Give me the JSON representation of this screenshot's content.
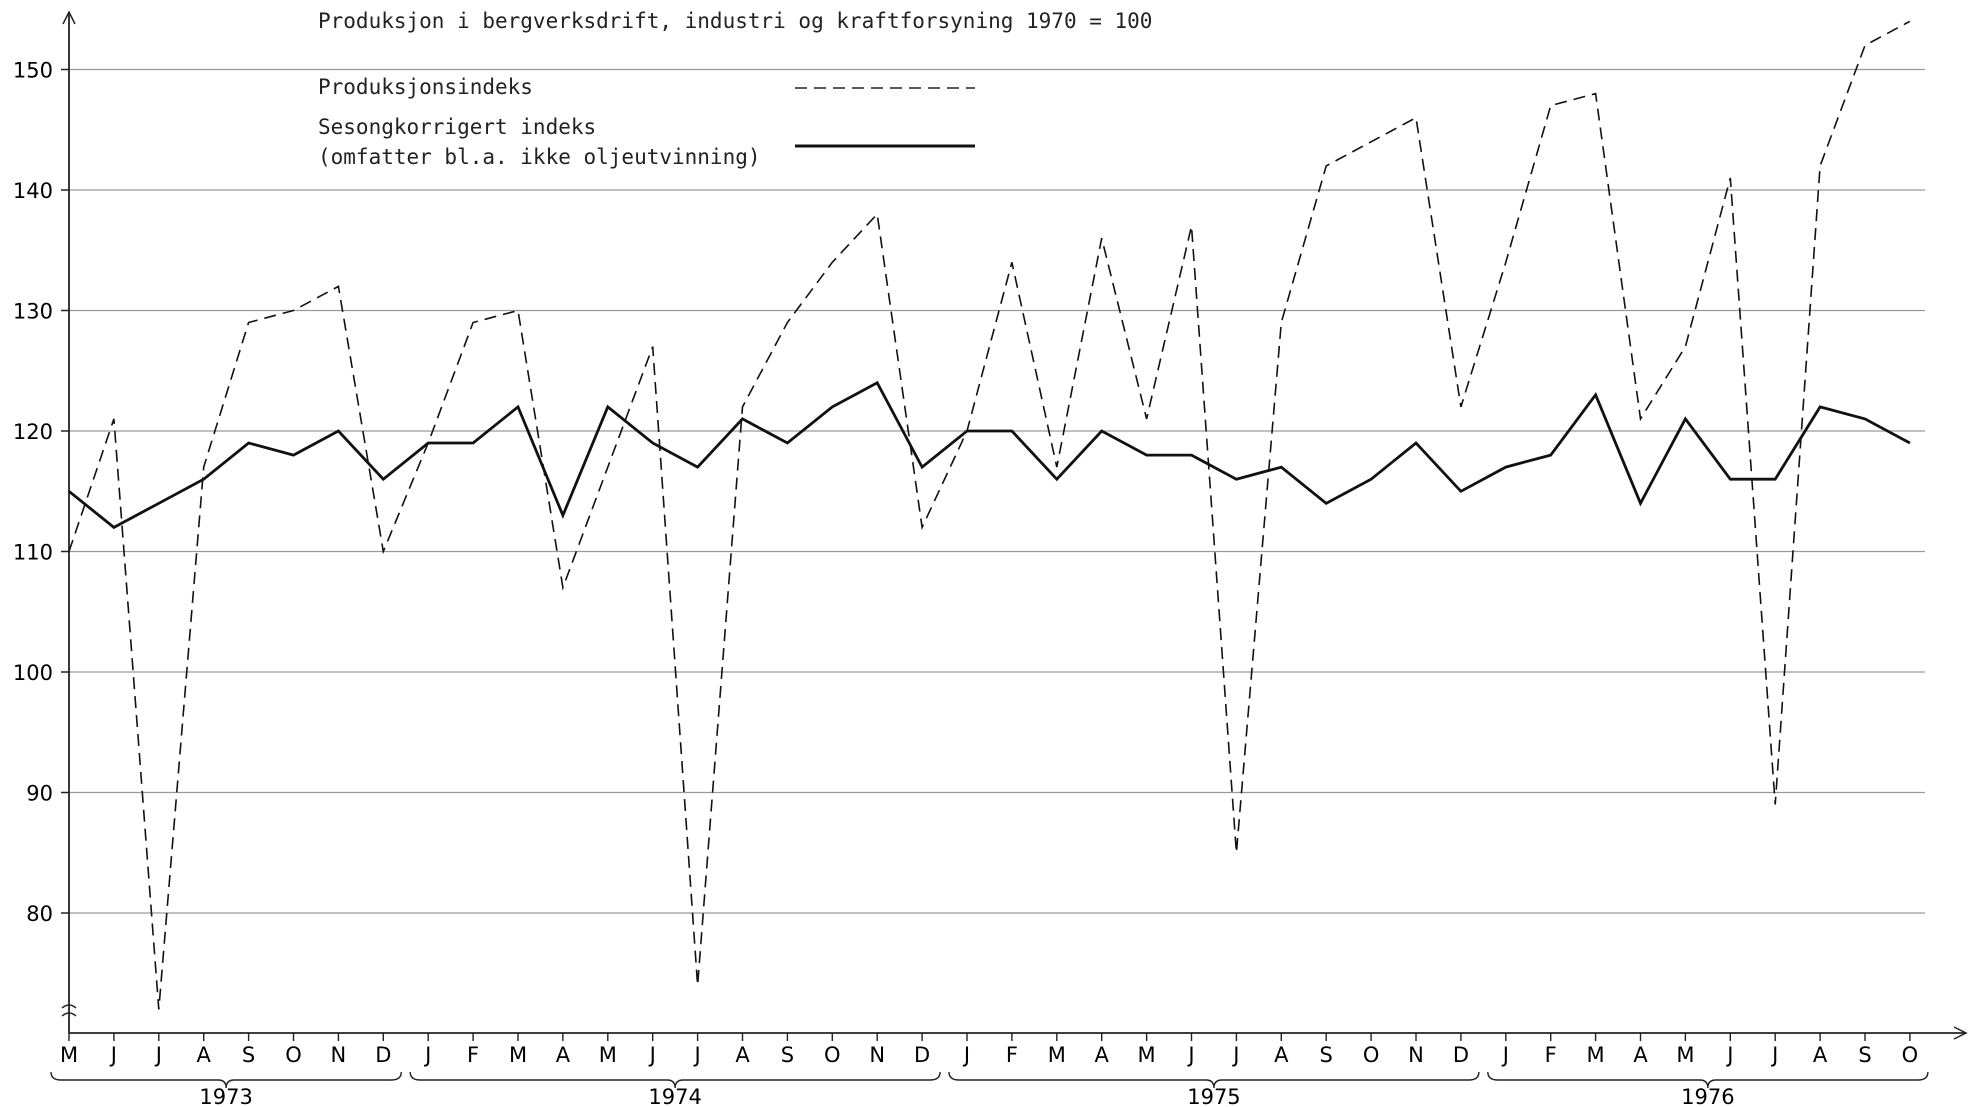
{
  "chart_data": {
    "type": "line",
    "title": "Produksjon i bergverksdrift, industri og kraftforsyning 1970 = 100",
    "ylim": [
      70,
      155
    ],
    "yticks": [
      80,
      90,
      100,
      110,
      120,
      130,
      140,
      150
    ],
    "grid": "horizontal",
    "legend_position": "top-left",
    "x": [
      "M",
      "J",
      "J",
      "A",
      "S",
      "O",
      "N",
      "D",
      "J",
      "F",
      "M",
      "A",
      "M",
      "J",
      "J",
      "A",
      "S",
      "O",
      "N",
      "D",
      "J",
      "F",
      "M",
      "A",
      "M",
      "J",
      "J",
      "A",
      "S",
      "O",
      "N",
      "D",
      "J",
      "F",
      "M",
      "A",
      "M",
      "J",
      "J",
      "A",
      "S",
      "O"
    ],
    "years": [
      {
        "label": "1973",
        "start": 0,
        "end": 7
      },
      {
        "label": "1974",
        "start": 8,
        "end": 19
      },
      {
        "label": "1975",
        "start": 20,
        "end": 31
      },
      {
        "label": "1976",
        "start": 32,
        "end": 41
      }
    ],
    "series": [
      {
        "name": "Produksjonsindeks",
        "style": "dashed",
        "values": [
          110,
          121,
          72,
          117,
          129,
          130,
          132,
          110,
          119,
          129,
          130,
          107,
          117,
          127,
          74,
          122,
          129,
          134,
          138,
          112,
          120,
          134,
          117,
          136,
          121,
          137,
          85,
          129,
          142,
          144,
          146,
          122,
          134,
          147,
          148,
          121,
          127,
          141,
          89,
          142,
          152,
          154
        ]
      },
      {
        "name": "Sesongkorrigert indeks\n(omfatter bl.a. ikke oljeutvinning)",
        "style": "solid",
        "values": [
          115,
          112,
          114,
          116,
          119,
          118,
          120,
          116,
          119,
          119,
          122,
          113,
          122,
          119,
          117,
          121,
          119,
          122,
          124,
          117,
          120,
          120,
          116,
          120,
          118,
          118,
          116,
          117,
          114,
          116,
          119,
          115,
          117,
          118,
          123,
          114,
          121,
          116,
          116,
          122,
          121,
          119
        ]
      }
    ]
  }
}
